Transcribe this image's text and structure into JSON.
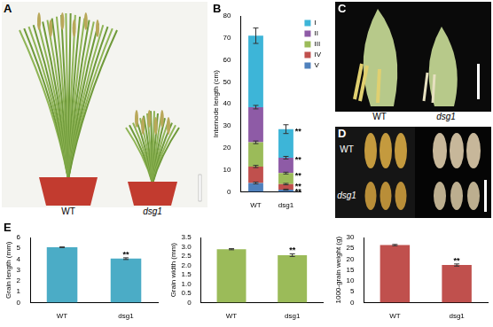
{
  "photos": [
    {
      "panel": "A",
      "labels": [
        "WT",
        "dsg1"
      ]
    },
    {
      "panel": "C",
      "labels": [
        "WT",
        "dsg1"
      ]
    },
    {
      "panel": "D",
      "labels": [
        "WT",
        "dsg1"
      ]
    }
  ],
  "chart_panel_letters": [
    "B",
    "E"
  ],
  "chart_data": [
    {
      "type": "bar",
      "stacked": true,
      "y_label": "Internode length (cm)",
      "categories": [
        "WT",
        "dsg1"
      ],
      "series": [
        {
          "name": "I",
          "color": "#3db5d8",
          "values": [
            32.5,
            13
          ],
          "errors": [
            3.5,
            2
          ],
          "significance": [
            null,
            "**"
          ]
        },
        {
          "name": "II",
          "color": "#8e5ba6",
          "values": [
            16,
            7
          ],
          "errors": [
            0.8,
            0.6
          ],
          "significance": [
            null,
            "**"
          ]
        },
        {
          "name": "III",
          "color": "#9bbb59",
          "values": [
            11,
            5
          ],
          "errors": [
            0.6,
            0.4
          ],
          "significance": [
            null,
            "**"
          ]
        },
        {
          "name": "IV",
          "color": "#c0504d",
          "values": [
            7.5,
            2.5
          ],
          "errors": [
            0.5,
            0.3
          ],
          "significance": [
            null,
            "**"
          ]
        },
        {
          "name": "V",
          "color": "#4f81bd",
          "values": [
            4,
            1
          ],
          "errors": [
            0.4,
            0.2
          ],
          "significance": [
            null,
            "**"
          ]
        }
      ],
      "ylim": [
        0,
        80
      ],
      "yticks": [
        0,
        10,
        20,
        30,
        40,
        50,
        60,
        70,
        80
      ],
      "grid": false,
      "legend": "right"
    },
    {
      "type": "bar",
      "y_label": "Grain length (mm)",
      "categories": [
        "WT",
        "dsg1"
      ],
      "values": [
        5.1,
        4.05
      ],
      "errors": [
        0.03,
        0.08
      ],
      "significance": [
        null,
        "**"
      ],
      "color": "#4bacc6",
      "ylim": [
        0,
        6
      ],
      "yticks": [
        0,
        1,
        2,
        3,
        4,
        5,
        6
      ],
      "grid": false
    },
    {
      "type": "bar",
      "y_label": "Grain width (mm)",
      "categories": [
        "WT",
        "dsg1"
      ],
      "values": [
        2.87,
        2.55
      ],
      "errors": [
        0.03,
        0.07
      ],
      "significance": [
        null,
        "**"
      ],
      "color": "#9bbb59",
      "ylim": [
        0,
        3.5
      ],
      "yticks": [
        0,
        0.5,
        {
          "value": 1,
          "label": "1.0"
        },
        1.5,
        {
          "value": 2,
          "label": "2.0"
        },
        2.5,
        {
          "value": 3,
          "label": "3.0"
        },
        3.5
      ],
      "grid": false
    },
    {
      "type": "bar",
      "y_label": "1000-grain weight (g)",
      "categories": [
        "WT",
        "dsg1"
      ],
      "values": [
        26.5,
        17.3
      ],
      "errors": [
        0.3,
        0.5
      ],
      "significance": [
        null,
        "**"
      ],
      "color": "#c0504d",
      "ylim": [
        0,
        30
      ],
      "yticks": [
        0,
        5,
        10,
        15,
        20,
        25,
        30
      ],
      "grid": false
    }
  ]
}
